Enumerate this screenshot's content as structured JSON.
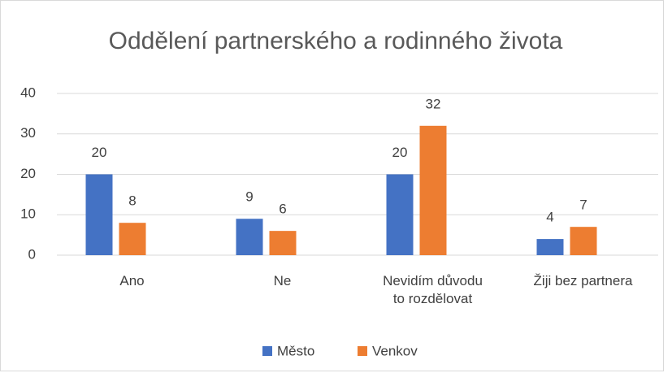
{
  "chart_data": {
    "type": "bar",
    "title": "Oddělení partnerského a rodinného života",
    "categories": [
      "Ano",
      "Ne",
      "Nevidím důvodu\nto rozdělovat",
      "Žiji bez partnera"
    ],
    "series": [
      {
        "name": "Město",
        "color": "#4472c4",
        "values": [
          20,
          9,
          20,
          4
        ]
      },
      {
        "name": "Venkov",
        "color": "#ed7d31",
        "values": [
          8,
          6,
          32,
          7
        ]
      }
    ],
    "ylim": [
      0,
      40
    ],
    "yticks": [
      0,
      10,
      20,
      30,
      40
    ],
    "grid": true,
    "legend": "bottom"
  }
}
